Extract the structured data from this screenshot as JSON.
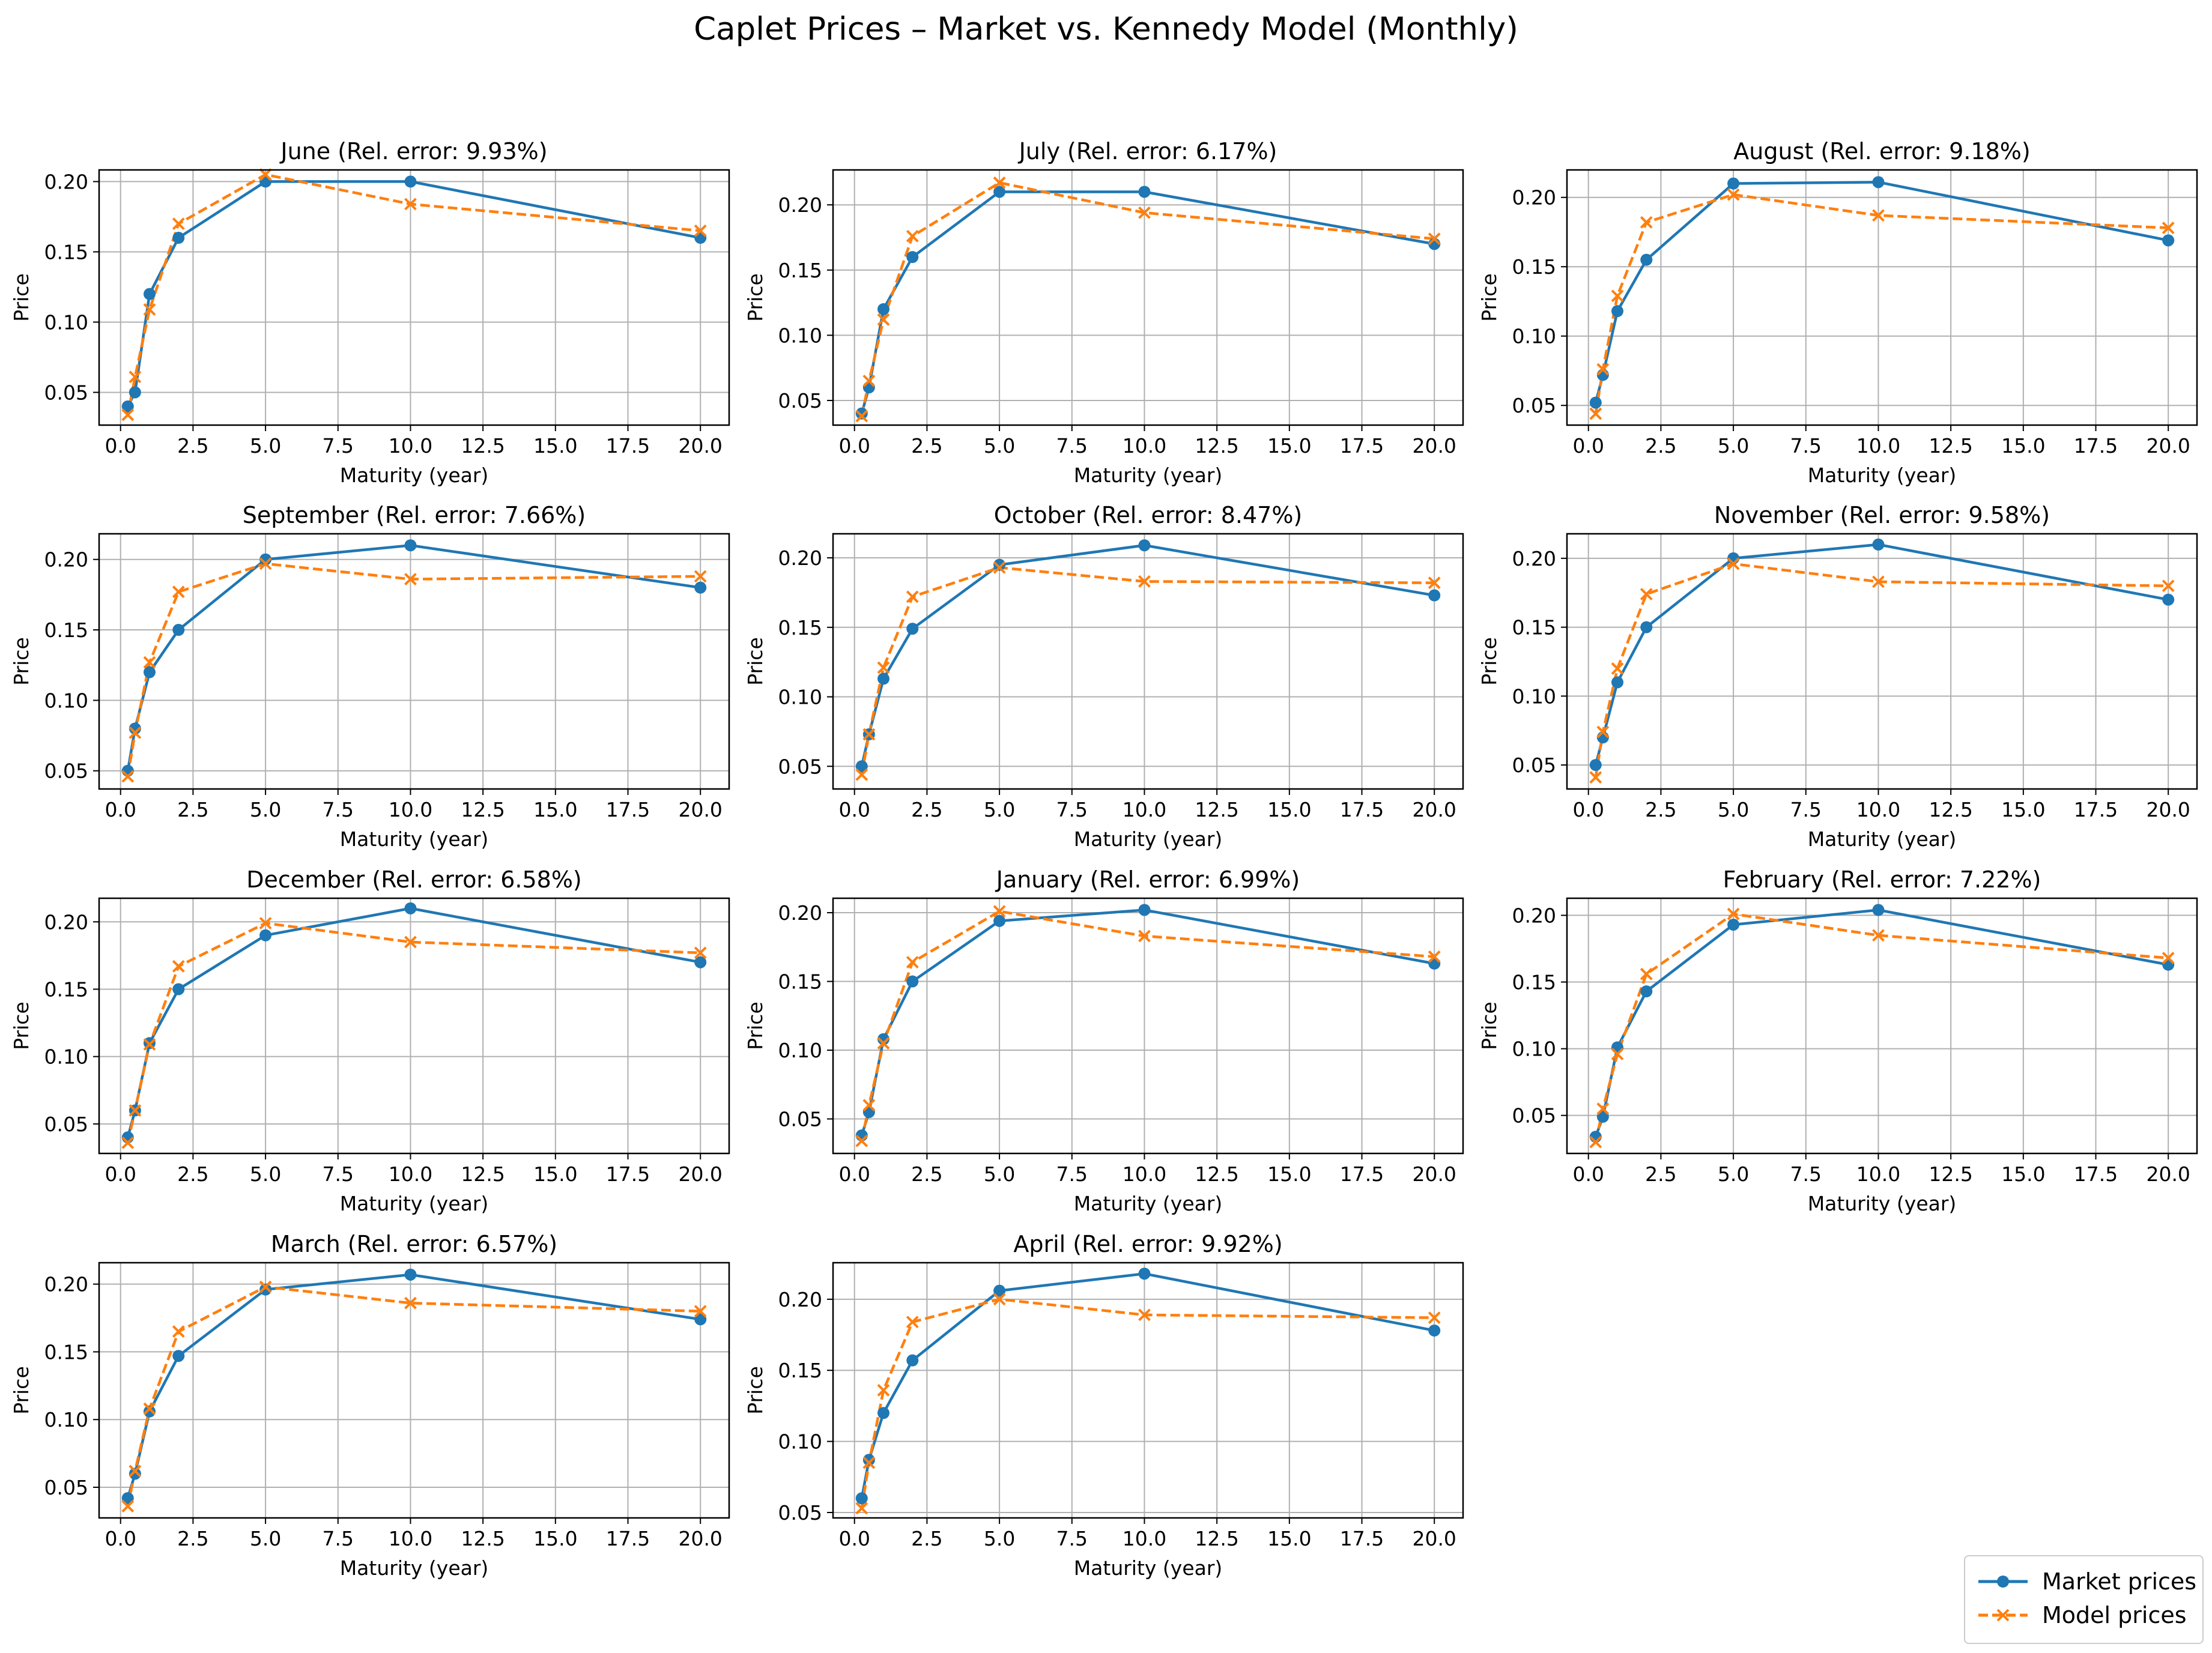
{
  "figure": {
    "title": "Caplet Prices – Market vs. Kennedy Model (Monthly)"
  },
  "legend": {
    "market_label": "Market prices",
    "model_label": "Model prices"
  },
  "colors": {
    "market": "#1f77b4",
    "model": "#ff7f0e",
    "grid": "#b0b0b0"
  },
  "chart_data": [
    {
      "type": "line",
      "title": "June (Rel. error: 9.93%)",
      "xlabel": "Maturity (year)",
      "ylabel": "Price",
      "x": [
        0.25,
        0.5,
        1,
        2,
        5,
        10,
        20
      ],
      "xlim": [
        -0.74,
        20.99
      ],
      "ylim": [
        0.0267,
        0.2083
      ],
      "xticks": [
        0.0,
        2.5,
        5.0,
        7.5,
        10.0,
        12.5,
        15.0,
        17.5,
        20.0
      ],
      "yticks": [
        0.05,
        0.1,
        0.15,
        0.2
      ],
      "series": [
        {
          "name": "Market prices",
          "values": [
            0.04,
            0.05,
            0.12,
            0.16,
            0.2,
            0.2,
            0.16
          ]
        },
        {
          "name": "Model prices",
          "values": [
            0.034,
            0.061,
            0.109,
            0.17,
            0.205,
            0.184,
            0.165
          ]
        }
      ]
    },
    {
      "type": "line",
      "title": "July (Rel. error: 6.17%)",
      "xlabel": "Maturity (year)",
      "ylabel": "Price",
      "x": [
        0.25,
        0.5,
        1,
        2,
        5,
        10,
        20
      ],
      "xlim": [
        -0.74,
        20.99
      ],
      "ylim": [
        0.0311,
        0.2268
      ],
      "xticks": [
        0.0,
        2.5,
        5.0,
        7.5,
        10.0,
        12.5,
        15.0,
        17.5,
        20.0
      ],
      "yticks": [
        0.05,
        0.1,
        0.15,
        0.2
      ],
      "series": [
        {
          "name": "Market prices",
          "values": [
            0.04,
            0.06,
            0.12,
            0.16,
            0.21,
            0.21,
            0.17
          ]
        },
        {
          "name": "Model prices",
          "values": [
            0.038,
            0.065,
            0.112,
            0.176,
            0.217,
            0.194,
            0.174
          ]
        }
      ]
    },
    {
      "type": "line",
      "title": "August (Rel. error: 9.18%)",
      "xlabel": "Maturity (year)",
      "ylabel": "Price",
      "x": [
        0.25,
        0.5,
        1,
        2,
        5,
        10,
        20
      ],
      "xlim": [
        -0.74,
        20.99
      ],
      "ylim": [
        0.0358,
        0.2198
      ],
      "xticks": [
        0.0,
        2.5,
        5.0,
        7.5,
        10.0,
        12.5,
        15.0,
        17.5,
        20.0
      ],
      "yticks": [
        0.05,
        0.1,
        0.15,
        0.2
      ],
      "series": [
        {
          "name": "Market prices",
          "values": [
            0.052,
            0.072,
            0.118,
            0.155,
            0.21,
            0.211,
            0.169
          ]
        },
        {
          "name": "Model prices",
          "values": [
            0.044,
            0.076,
            0.129,
            0.182,
            0.202,
            0.187,
            0.178
          ]
        }
      ]
    },
    {
      "type": "line",
      "title": "September (Rel. error: 7.66%)",
      "xlabel": "Maturity (year)",
      "ylabel": "Price",
      "x": [
        0.25,
        0.5,
        1,
        2,
        5,
        10,
        20
      ],
      "xlim": [
        -0.74,
        20.99
      ],
      "ylim": [
        0.0371,
        0.2182
      ],
      "xticks": [
        0.0,
        2.5,
        5.0,
        7.5,
        10.0,
        12.5,
        15.0,
        17.5,
        20.0
      ],
      "yticks": [
        0.05,
        0.1,
        0.15,
        0.2
      ],
      "series": [
        {
          "name": "Market prices",
          "values": [
            0.05,
            0.08,
            0.12,
            0.15,
            0.2,
            0.21,
            0.18
          ]
        },
        {
          "name": "Model prices",
          "values": [
            0.046,
            0.077,
            0.127,
            0.177,
            0.197,
            0.186,
            0.188
          ]
        }
      ]
    },
    {
      "type": "line",
      "title": "October (Rel. error: 8.47%)",
      "xlabel": "Maturity (year)",
      "ylabel": "Price",
      "x": [
        0.25,
        0.5,
        1,
        2,
        5,
        10,
        20
      ],
      "xlim": [
        -0.74,
        20.99
      ],
      "ylim": [
        0.0337,
        0.2173
      ],
      "xticks": [
        0.0,
        2.5,
        5.0,
        7.5,
        10.0,
        12.5,
        15.0,
        17.5,
        20.0
      ],
      "yticks": [
        0.05,
        0.1,
        0.15,
        0.2
      ],
      "series": [
        {
          "name": "Market prices",
          "values": [
            0.05,
            0.073,
            0.113,
            0.149,
            0.195,
            0.209,
            0.173
          ]
        },
        {
          "name": "Model prices",
          "values": [
            0.044,
            0.073,
            0.121,
            0.172,
            0.193,
            0.183,
            0.182
          ]
        }
      ]
    },
    {
      "type": "line",
      "title": "November (Rel. error: 9.58%)",
      "xlabel": "Maturity (year)",
      "ylabel": "Price",
      "x": [
        0.25,
        0.5,
        1,
        2,
        5,
        10,
        20
      ],
      "xlim": [
        -0.74,
        20.99
      ],
      "ylim": [
        0.0326,
        0.2178
      ],
      "xticks": [
        0.0,
        2.5,
        5.0,
        7.5,
        10.0,
        12.5,
        15.0,
        17.5,
        20.0
      ],
      "yticks": [
        0.05,
        0.1,
        0.15,
        0.2
      ],
      "series": [
        {
          "name": "Market prices",
          "values": [
            0.05,
            0.07,
            0.11,
            0.15,
            0.2,
            0.21,
            0.17
          ]
        },
        {
          "name": "Model prices",
          "values": [
            0.041,
            0.074,
            0.12,
            0.174,
            0.196,
            0.183,
            0.18
          ]
        }
      ]
    },
    {
      "type": "line",
      "title": "December (Rel. error: 6.58%)",
      "xlabel": "Maturity (year)",
      "ylabel": "Price",
      "x": [
        0.25,
        0.5,
        1,
        2,
        5,
        10,
        20
      ],
      "xlim": [
        -0.74,
        20.99
      ],
      "ylim": [
        0.0281,
        0.2175
      ],
      "xticks": [
        0.0,
        2.5,
        5.0,
        7.5,
        10.0,
        12.5,
        15.0,
        17.5,
        20.0
      ],
      "yticks": [
        0.05,
        0.1,
        0.15,
        0.2
      ],
      "series": [
        {
          "name": "Market prices",
          "values": [
            0.04,
            0.06,
            0.11,
            0.15,
            0.19,
            0.21,
            0.17
          ]
        },
        {
          "name": "Model prices",
          "values": [
            0.036,
            0.06,
            0.109,
            0.167,
            0.199,
            0.185,
            0.177
          ]
        }
      ]
    },
    {
      "type": "line",
      "title": "January (Rel. error: 6.99%)",
      "xlabel": "Maturity (year)",
      "ylabel": "Price",
      "x": [
        0.25,
        0.5,
        1,
        2,
        5,
        10,
        20
      ],
      "xlim": [
        -0.74,
        20.99
      ],
      "ylim": [
        0.0249,
        0.2105
      ],
      "xticks": [
        0.0,
        2.5,
        5.0,
        7.5,
        10.0,
        12.5,
        15.0,
        17.5,
        20.0
      ],
      "yticks": [
        0.05,
        0.1,
        0.15,
        0.2
      ],
      "series": [
        {
          "name": "Market prices",
          "values": [
            0.038,
            0.055,
            0.108,
            0.15,
            0.194,
            0.202,
            0.163
          ]
        },
        {
          "name": "Model prices",
          "values": [
            0.034,
            0.06,
            0.105,
            0.164,
            0.201,
            0.183,
            0.168
          ]
        }
      ]
    },
    {
      "type": "line",
      "title": "February (Rel. error: 7.22%)",
      "xlabel": "Maturity (year)",
      "ylabel": "Price",
      "x": [
        0.25,
        0.5,
        1,
        2,
        5,
        10,
        20
      ],
      "xlim": [
        -0.74,
        20.99
      ],
      "ylim": [
        0.0215,
        0.2128
      ],
      "xticks": [
        0.0,
        2.5,
        5.0,
        7.5,
        10.0,
        12.5,
        15.0,
        17.5,
        20.0
      ],
      "yticks": [
        0.05,
        0.1,
        0.15,
        0.2
      ],
      "series": [
        {
          "name": "Market prices",
          "values": [
            0.034,
            0.049,
            0.101,
            0.143,
            0.193,
            0.204,
            0.163
          ]
        },
        {
          "name": "Model prices",
          "values": [
            0.03,
            0.055,
            0.096,
            0.156,
            0.201,
            0.185,
            0.168
          ]
        }
      ]
    },
    {
      "type": "line",
      "title": "March (Rel. error: 6.57%)",
      "xlabel": "Maturity (year)",
      "ylabel": "Price",
      "x": [
        0.25,
        0.5,
        1,
        2,
        5,
        10,
        20
      ],
      "xlim": [
        -0.74,
        20.99
      ],
      "ylim": [
        0.0274,
        0.2158
      ],
      "xticks": [
        0.0,
        2.5,
        5.0,
        7.5,
        10.0,
        12.5,
        15.0,
        17.5,
        20.0
      ],
      "yticks": [
        0.05,
        0.1,
        0.15,
        0.2
      ],
      "series": [
        {
          "name": "Market prices",
          "values": [
            0.042,
            0.06,
            0.106,
            0.147,
            0.196,
            0.207,
            0.174
          ]
        },
        {
          "name": "Model prices",
          "values": [
            0.036,
            0.062,
            0.108,
            0.165,
            0.198,
            0.186,
            0.18
          ]
        }
      ]
    },
    {
      "type": "line",
      "title": "April (Rel. error: 9.92%)",
      "xlabel": "Maturity (year)",
      "ylabel": "Price",
      "x": [
        0.25,
        0.5,
        1,
        2,
        5,
        10,
        20
      ],
      "xlim": [
        -0.74,
        20.99
      ],
      "ylim": [
        0.0462,
        0.2257
      ],
      "xticks": [
        0.0,
        2.5,
        5.0,
        7.5,
        10.0,
        12.5,
        15.0,
        17.5,
        20.0
      ],
      "yticks": [
        0.05,
        0.1,
        0.15,
        0.2
      ],
      "series": [
        {
          "name": "Market prices",
          "values": [
            0.06,
            0.087,
            0.12,
            0.157,
            0.206,
            0.218,
            0.178
          ]
        },
        {
          "name": "Model prices",
          "values": [
            0.053,
            0.085,
            0.136,
            0.184,
            0.2,
            0.189,
            0.187
          ]
        }
      ]
    }
  ]
}
